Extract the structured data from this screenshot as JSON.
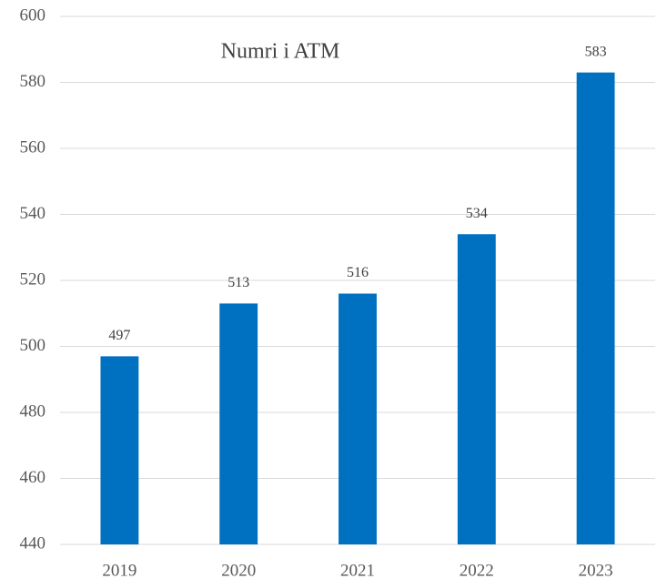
{
  "chart_data": {
    "type": "bar",
    "title": "Numri i ATM",
    "categories": [
      "2019",
      "2020",
      "2021",
      "2022",
      "2023"
    ],
    "values": [
      497,
      513,
      516,
      534,
      583
    ],
    "color": "#0070c0",
    "ylim": [
      440,
      600
    ],
    "yticks": [
      440,
      460,
      480,
      500,
      520,
      540,
      560,
      580,
      600
    ],
    "grid": true
  }
}
